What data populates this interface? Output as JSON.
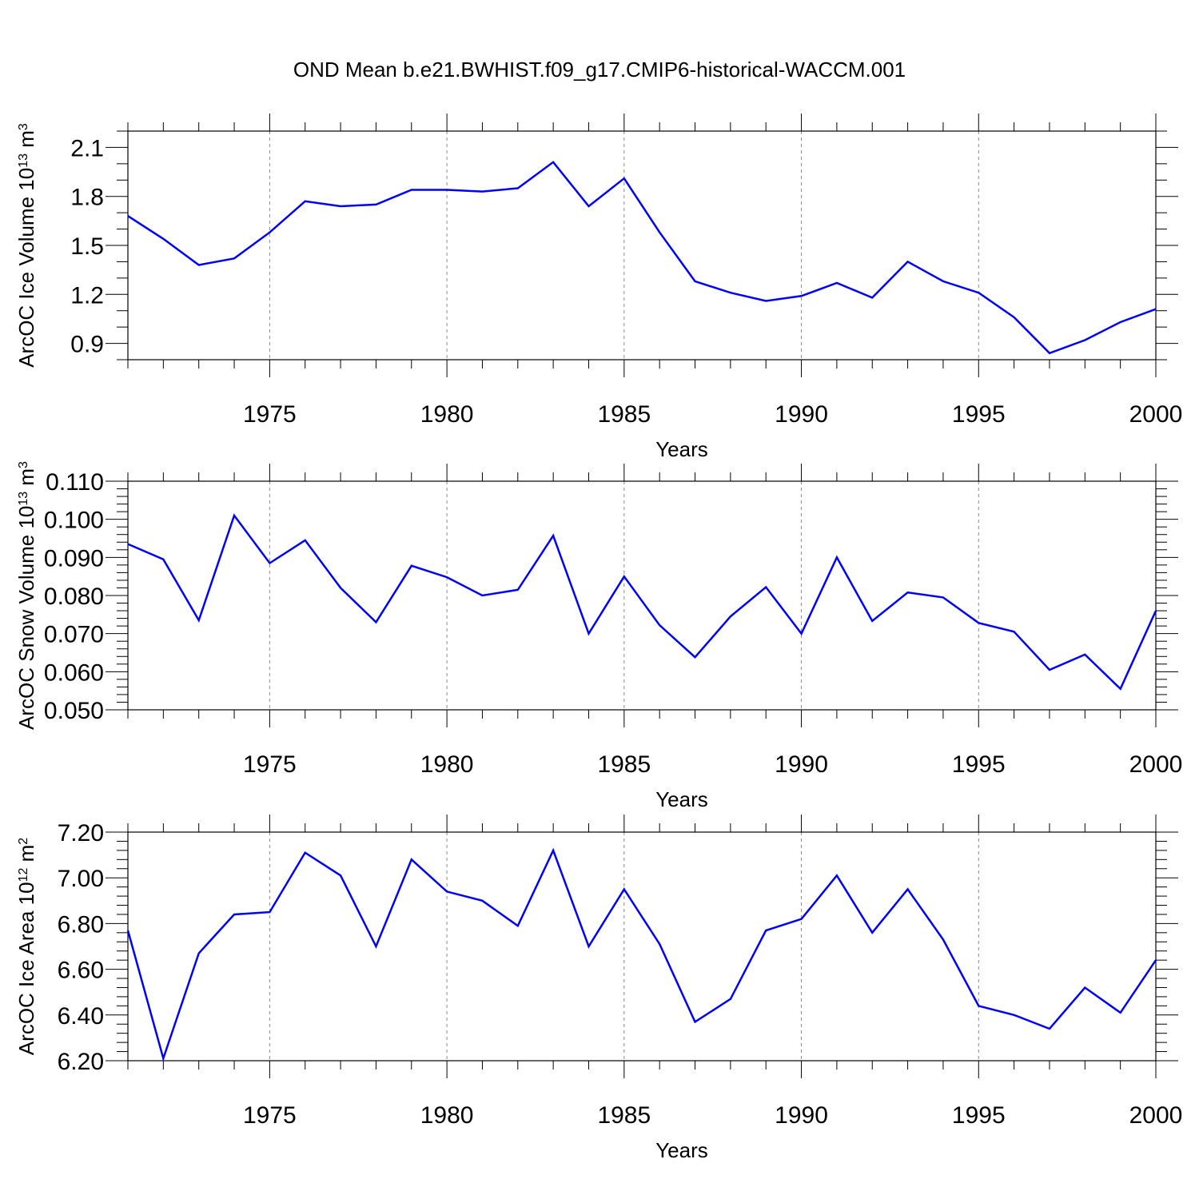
{
  "title": "OND Mean b.e21.BWHIST.f09_g17.CMIP6-historical-WACCM.001",
  "colors": {
    "line": "#0000ff",
    "axis": "#000000",
    "grid": "#888888"
  },
  "chart_data": [
    {
      "type": "line",
      "title": "OND Mean b.e21.BWHIST.f09_g17.CMIP6-historical-WACCM.001",
      "xlabel": "Years",
      "ylabel": "ArcOC Ice Volume 10",
      "ylabel_exp": "13",
      "ylabel_unit": " m",
      "ylabel_unit_exp": "3",
      "xlim": [
        1971,
        2000
      ],
      "ylim": [
        0.8,
        2.2
      ],
      "yticks": [
        0.9,
        1.2,
        1.5,
        1.8,
        2.1
      ],
      "ytick_labels": [
        "0.9",
        "1.2",
        "1.5",
        "1.8",
        "2.1"
      ],
      "ytick_minor_step": 0.1,
      "xticks": [
        1975,
        1980,
        1985,
        1990,
        1995,
        2000
      ],
      "xtick_labels": [
        "1975",
        "1980",
        "1985",
        "1990",
        "1995",
        "2000"
      ],
      "grid": "vertical dashed at major x ticks",
      "series": [
        {
          "name": "ice-volume",
          "x": [
            1971,
            1972,
            1973,
            1974,
            1975,
            1976,
            1977,
            1978,
            1979,
            1980,
            1981,
            1982,
            1983,
            1984,
            1985,
            1986,
            1987,
            1988,
            1989,
            1990,
            1991,
            1992,
            1993,
            1994,
            1995,
            1996,
            1997,
            1998,
            1999,
            2000
          ],
          "values": [
            1.68,
            1.54,
            1.38,
            1.42,
            1.58,
            1.77,
            1.74,
            1.75,
            1.84,
            1.84,
            1.83,
            1.85,
            2.01,
            1.74,
            1.91,
            1.58,
            1.28,
            1.21,
            1.16,
            1.19,
            1.27,
            1.18,
            1.4,
            1.28,
            1.21,
            1.06,
            0.84,
            0.92,
            1.03,
            1.11
          ]
        }
      ]
    },
    {
      "type": "line",
      "xlabel": "Years",
      "ylabel": "ArcOC Snow Volume 10",
      "ylabel_exp": "13",
      "ylabel_unit": " m",
      "ylabel_unit_exp": "3",
      "xlim": [
        1971,
        2000
      ],
      "ylim": [
        0.05,
        0.11
      ],
      "yticks": [
        0.05,
        0.06,
        0.07,
        0.08,
        0.09,
        0.1,
        0.11
      ],
      "ytick_labels": [
        "0.050",
        "0.060",
        "0.070",
        "0.080",
        "0.090",
        "0.100",
        "0.110"
      ],
      "ytick_minor_step": 0.002,
      "xticks": [
        1975,
        1980,
        1985,
        1990,
        1995,
        2000
      ],
      "xtick_labels": [
        "1975",
        "1980",
        "1985",
        "1990",
        "1995",
        "2000"
      ],
      "grid": "vertical dashed at major x ticks",
      "series": [
        {
          "name": "snow-volume",
          "x": [
            1971,
            1972,
            1973,
            1974,
            1975,
            1976,
            1977,
            1978,
            1979,
            1980,
            1981,
            1982,
            1983,
            1984,
            1985,
            1986,
            1987,
            1988,
            1989,
            1990,
            1991,
            1992,
            1993,
            1994,
            1995,
            1996,
            1997,
            1998,
            1999,
            2000
          ],
          "values": [
            0.0935,
            0.0895,
            0.0735,
            0.101,
            0.0885,
            0.0945,
            0.082,
            0.073,
            0.0878,
            0.0848,
            0.08,
            0.0815,
            0.0957,
            0.07,
            0.085,
            0.0722,
            0.0638,
            0.0745,
            0.0822,
            0.07,
            0.09,
            0.0733,
            0.0808,
            0.0795,
            0.0728,
            0.0705,
            0.0605,
            0.0645,
            0.0555,
            0.076
          ]
        }
      ]
    },
    {
      "type": "line",
      "xlabel": "Years",
      "ylabel": "ArcOC Ice Area 10",
      "ylabel_exp": "12",
      "ylabel_unit": " m",
      "ylabel_unit_exp": "2",
      "xlim": [
        1971,
        2000
      ],
      "ylim": [
        6.2,
        7.2
      ],
      "yticks": [
        6.2,
        6.4,
        6.6,
        6.8,
        7.0,
        7.2
      ],
      "ytick_labels": [
        "6.20",
        "6.40",
        "6.60",
        "6.80",
        "7.00",
        "7.20"
      ],
      "ytick_minor_step": 0.04,
      "xticks": [
        1975,
        1980,
        1985,
        1990,
        1995,
        2000
      ],
      "xtick_labels": [
        "1975",
        "1980",
        "1985",
        "1990",
        "1995",
        "2000"
      ],
      "grid": "vertical dashed at major x ticks",
      "series": [
        {
          "name": "ice-area",
          "x": [
            1971,
            1972,
            1973,
            1974,
            1975,
            1976,
            1977,
            1978,
            1979,
            1980,
            1981,
            1982,
            1983,
            1984,
            1985,
            1986,
            1987,
            1988,
            1989,
            1990,
            1991,
            1992,
            1993,
            1994,
            1995,
            1996,
            1997,
            1998,
            1999,
            2000
          ],
          "values": [
            6.77,
            6.21,
            6.67,
            6.84,
            6.85,
            7.11,
            7.01,
            6.7,
            7.08,
            6.94,
            6.9,
            6.79,
            7.12,
            6.7,
            6.95,
            6.71,
            6.37,
            6.47,
            6.77,
            6.82,
            7.01,
            6.76,
            6.95,
            6.73,
            6.44,
            6.4,
            6.34,
            6.52,
            6.41,
            6.64
          ]
        }
      ]
    }
  ]
}
